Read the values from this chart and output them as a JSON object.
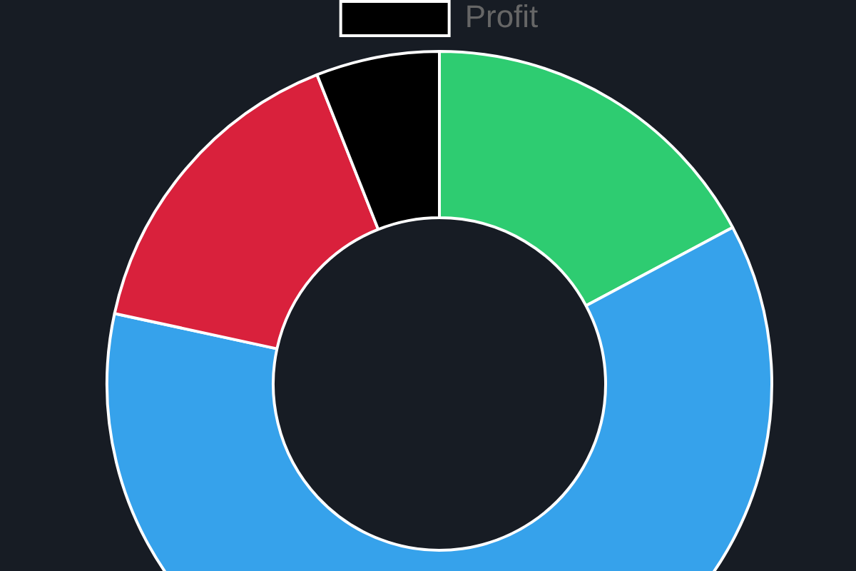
{
  "chart_data": {
    "type": "donut",
    "categories": [
      null,
      null,
      null,
      "Profit"
    ],
    "values": [
      17.2,
      61.2,
      15.6,
      6.0
    ],
    "colors": [
      "#2ecc71",
      "#36a2eb",
      "#d9213c",
      "#000000"
    ],
    "legend": "top"
  }
}
